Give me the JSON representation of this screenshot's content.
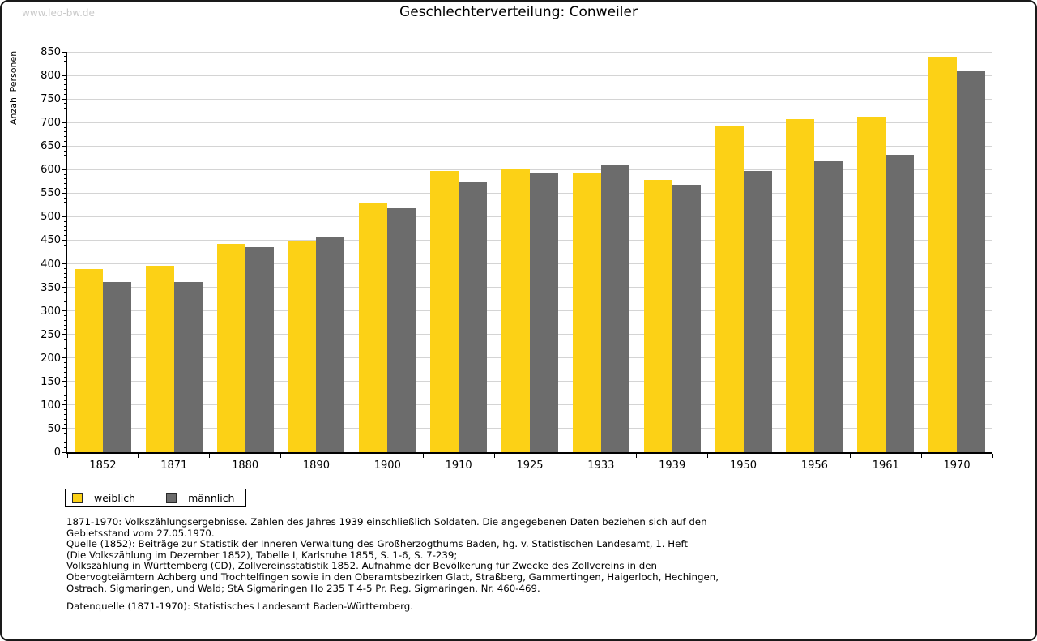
{
  "watermark": "www.leo-bw.de",
  "chart_data": {
    "type": "bar",
    "title": "Geschlechterverteilung: Conweiler",
    "xlabel": "",
    "ylabel": "Anzahl Personen",
    "categories": [
      "1852",
      "1871",
      "1880",
      "1890",
      "1900",
      "1910",
      "1925",
      "1933",
      "1939",
      "1950",
      "1956",
      "1961",
      "1970"
    ],
    "series": [
      {
        "name": "weiblich",
        "color": "#FCD116",
        "values": [
          389,
          396,
          443,
          447,
          530,
          597,
          601,
          592,
          579,
          694,
          707,
          713,
          840
        ]
      },
      {
        "name": "männlich",
        "color": "#6C6C6C",
        "values": [
          362,
          362,
          435,
          457,
          518,
          574,
          592,
          611,
          568,
          597,
          617,
          632,
          810
        ]
      }
    ],
    "ylim": [
      0,
      850
    ],
    "ytick_step": 50,
    "minor_tick_step": 10,
    "grid": true,
    "legend_position": "bottom-left"
  },
  "footnote_lines": [
    "1871-1970: Volkszählungsergebnisse. Zahlen des Jahres 1939 einschließlich Soldaten. Die angegebenen Daten beziehen sich auf den",
    "Gebietsstand vom 27.05.1970.",
    "Quelle (1852): Beiträge zur Statistik der Inneren Verwaltung des Großherzogthums Baden, hg. v. Statistischen Landesamt, 1. Heft",
    "(Die Volkszählung im Dezember 1852), Tabelle I, Karlsruhe 1855, S. 1-6, S. 7-239;",
    "Volkszählung in Württemberg (CD), Zollvereinsstatistik 1852. Aufnahme der Bevölkerung für Zwecke des Zollvereins in den",
    "Obervogteiämtern Achberg und Trochtelfingen sowie in den Oberamtsbezirken Glatt, Straßberg, Gammertingen, Haigerloch, Hechingen,",
    "Ostrach, Sigmaringen, und Wald; StA Sigmaringen Ho 235 T 4-5 Pr. Reg. Sigmaringen, Nr. 460-469."
  ],
  "datasource_line": "Datenquelle (1871-1970): Statistisches Landesamt Baden-Württemberg.",
  "colors": {
    "weiblich": "#FCD116",
    "männlich": "#6C6C6C",
    "gridline": "#d4d4d4",
    "axis": "#000000",
    "watermark": "#c9c9c9"
  }
}
